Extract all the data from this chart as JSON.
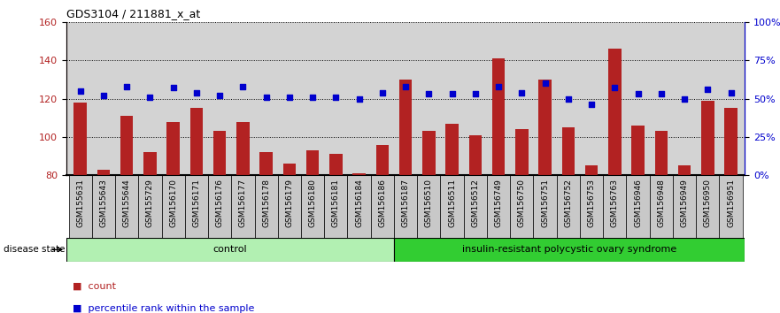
{
  "title": "GDS3104 / 211881_x_at",
  "samples": [
    "GSM155631",
    "GSM155643",
    "GSM155644",
    "GSM155729",
    "GSM156170",
    "GSM156171",
    "GSM156176",
    "GSM156177",
    "GSM156178",
    "GSM156179",
    "GSM156180",
    "GSM156181",
    "GSM156184",
    "GSM156186",
    "GSM156187",
    "GSM156510",
    "GSM156511",
    "GSM156512",
    "GSM156749",
    "GSM156750",
    "GSM156751",
    "GSM156752",
    "GSM156753",
    "GSM156763",
    "GSM156946",
    "GSM156948",
    "GSM156949",
    "GSM156950",
    "GSM156951"
  ],
  "bar_values": [
    118,
    83,
    111,
    92,
    108,
    115,
    103,
    108,
    92,
    86,
    93,
    91,
    81,
    96,
    130,
    103,
    107,
    101,
    141,
    104,
    130,
    105,
    85,
    146,
    106,
    103,
    85,
    119,
    115
  ],
  "percentile_values": [
    55,
    52,
    58,
    51,
    57,
    54,
    52,
    58,
    51,
    51,
    51,
    51,
    50,
    54,
    58,
    53,
    53,
    53,
    58,
    54,
    60,
    50,
    46,
    57,
    53,
    53,
    50,
    56,
    54
  ],
  "control_count": 14,
  "disease_count": 15,
  "bar_color": "#b22222",
  "dot_color": "#0000cd",
  "plot_bg_color": "#d3d3d3",
  "label_bg_color": "#c8c8c8",
  "control_color": "#b2f0b2",
  "disease_color": "#32cd32",
  "ylim_left": [
    80,
    160
  ],
  "ylim_right": [
    0,
    100
  ],
  "yticks_left": [
    80,
    100,
    120,
    140,
    160
  ],
  "yticks_right": [
    0,
    25,
    50,
    75,
    100
  ],
  "ytick_labels_right": [
    "0%",
    "25%",
    "50%",
    "75%",
    "100%"
  ],
  "group_label_control": "control",
  "group_label_disease": "insulin-resistant polycystic ovary syndrome",
  "disease_state_label": "disease state",
  "legend_bar": "count",
  "legend_dot": "percentile rank within the sample"
}
